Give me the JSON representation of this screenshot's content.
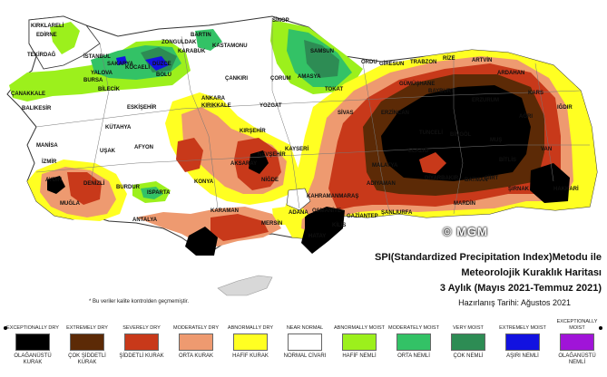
{
  "title": "SPI(Standardized Precipitation Index)Metodu ile",
  "subtitle": "Meteorolojik Kuraklık Haritası",
  "period": "3 Aylık (Mayıs 2021-Temmuz 2021)",
  "prepared": "Hazırlanış Tarihi: Ağustos 2021",
  "watermark": "© MGM",
  "footnote": "* Bu veriler kalite kontrolden geçmemiştir.",
  "colors": {
    "exceptionally_dry": "#000000",
    "extremely_dry": "#5c2a06",
    "severely_dry": "#c8391a",
    "moderately_dry": "#ee9a70",
    "abnormally_dry": "#ffff22",
    "near_normal": "#ffffff",
    "abnormally_moist": "#9cf01c",
    "moderately_moist": "#33c266",
    "very_moist": "#2d8c54",
    "extremely_moist": "#1212e0",
    "exceptionally_moist": "#a014d8"
  },
  "legend": [
    {
      "en": "EXCEPTIONALLY DRY",
      "tr": "OLAĞANÜSTÜ KURAK",
      "color": "#000000"
    },
    {
      "en": "EXTREMELY DRY",
      "tr": "ÇOK ŞİDDETLİ KURAK",
      "color": "#5c2a06"
    },
    {
      "en": "SEVERELY DRY",
      "tr": "ŞİDDETLİ KURAK",
      "color": "#c8391a"
    },
    {
      "en": "MODERATELY DRY",
      "tr": "ORTA KURAK",
      "color": "#ee9a70"
    },
    {
      "en": "ABNORMALLY DRY",
      "tr": "HAFİF KURAK",
      "color": "#ffff22"
    },
    {
      "en": "NEAR NORMAL",
      "tr": "NORMAL CİVARI",
      "color": "#ffffff"
    },
    {
      "en": "ABNORMALLY MOIST",
      "tr": "HAFİF NEMLİ",
      "color": "#9cf01c"
    },
    {
      "en": "MODERATELY MOIST",
      "tr": "ORTA NEMLİ",
      "color": "#33c266"
    },
    {
      "en": "VERY MOIST",
      "tr": "ÇOK NEMLİ",
      "color": "#2d8c54"
    },
    {
      "en": "EXTREMELY MOIST",
      "tr": "AŞIRI NEMLİ",
      "color": "#1212e0"
    },
    {
      "en": "EXCEPTIONALLY MOIST",
      "tr": "OLAĞANÜSTÜ NEMLİ",
      "color": "#a014d8"
    }
  ],
  "cities": [
    "KIRKLARELİ",
    "EDİRNE",
    "TEKİRDAĞ",
    "İSTANBUL",
    "KOCAELİ",
    "ÇANAKKALE",
    "BALIKESİR",
    "BURSA",
    "YALOVA",
    "BİLECİK",
    "SAKARYA",
    "DÜZCE",
    "BOLU",
    "ZONGULDAK",
    "BARTIN",
    "KARABÜK",
    "KASTAMONU",
    "SİNOP",
    "SAMSUN",
    "AMASYA",
    "TOKAT",
    "ÇORUM",
    "ÇANKIRI",
    "ANKARA",
    "KIRIKKALE",
    "YOZGAT",
    "ORDU",
    "GİRESUN",
    "TRABZON",
    "RİZE",
    "ARTVİN",
    "ARDAHAN",
    "GÜMÜŞHANE",
    "BAYBURT",
    "ERZURUM",
    "KARS",
    "IĞDIR",
    "AĞRI",
    "ERZİNCAN",
    "SİVAS",
    "KÜTAHYA",
    "ESKİŞEHİR",
    "MANİSA",
    "İZMİR",
    "UŞAK",
    "AFYON",
    "DENİZLİ",
    "AYDIN",
    "MUĞLA",
    "BURDUR",
    "ISPARTA",
    "ANTALYA",
    "KONYA",
    "KARAMAN",
    "KIRŞEHİR",
    "NEVŞEHİR",
    "KAYSERİ",
    "AKSARAY",
    "NİĞDE",
    "MERSİN",
    "ADANA",
    "KAHRAMANMARAŞ",
    "MALATYA",
    "ADIYAMAN",
    "ELAZIĞ",
    "TUNCELİ",
    "BİNGÖL",
    "MUŞ",
    "BİTLİS",
    "VAN",
    "HAKKARİ",
    "ŞIRNAK",
    "SİİRT",
    "BATMAN",
    "MARDİN",
    "DİYARBAKIR",
    "ŞANLIURFA",
    "GAZİANTEP",
    "KİLİS",
    "OSMANİYE",
    "HATAY"
  ]
}
